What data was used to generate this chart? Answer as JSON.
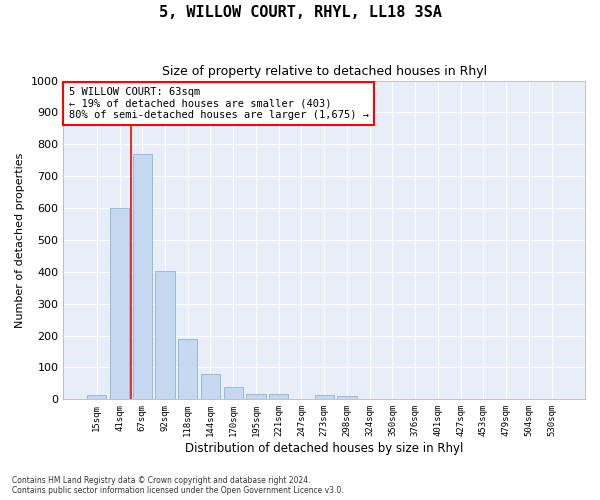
{
  "title": "5, WILLOW COURT, RHYL, LL18 3SA",
  "subtitle": "Size of property relative to detached houses in Rhyl",
  "xlabel": "Distribution of detached houses by size in Rhyl",
  "ylabel": "Number of detached properties",
  "bar_color": "#c5d8ef",
  "bar_edge_color": "#7aafd4",
  "background_color": "#e8eef8",
  "grid_color": "#ffffff",
  "vline_x": 1.5,
  "vline_color": "red",
  "annotation_text": "5 WILLOW COURT: 63sqm\n← 19% of detached houses are smaller (403)\n80% of semi-detached houses are larger (1,675) →",
  "annotation_box_color": "white",
  "annotation_box_edge": "red",
  "categories": [
    "15sqm",
    "41sqm",
    "67sqm",
    "92sqm",
    "118sqm",
    "144sqm",
    "170sqm",
    "195sqm",
    "221sqm",
    "247sqm",
    "273sqm",
    "298sqm",
    "324sqm",
    "350sqm",
    "376sqm",
    "401sqm",
    "427sqm",
    "453sqm",
    "479sqm",
    "504sqm",
    "530sqm"
  ],
  "values": [
    15,
    600,
    770,
    403,
    190,
    78,
    40,
    18,
    16,
    0,
    13,
    10,
    0,
    0,
    0,
    0,
    0,
    0,
    0,
    0,
    0
  ],
  "ylim": [
    0,
    1000
  ],
  "yticks": [
    0,
    100,
    200,
    300,
    400,
    500,
    600,
    700,
    800,
    900,
    1000
  ],
  "footer": "Contains HM Land Registry data © Crown copyright and database right 2024.\nContains public sector information licensed under the Open Government Licence v3.0."
}
